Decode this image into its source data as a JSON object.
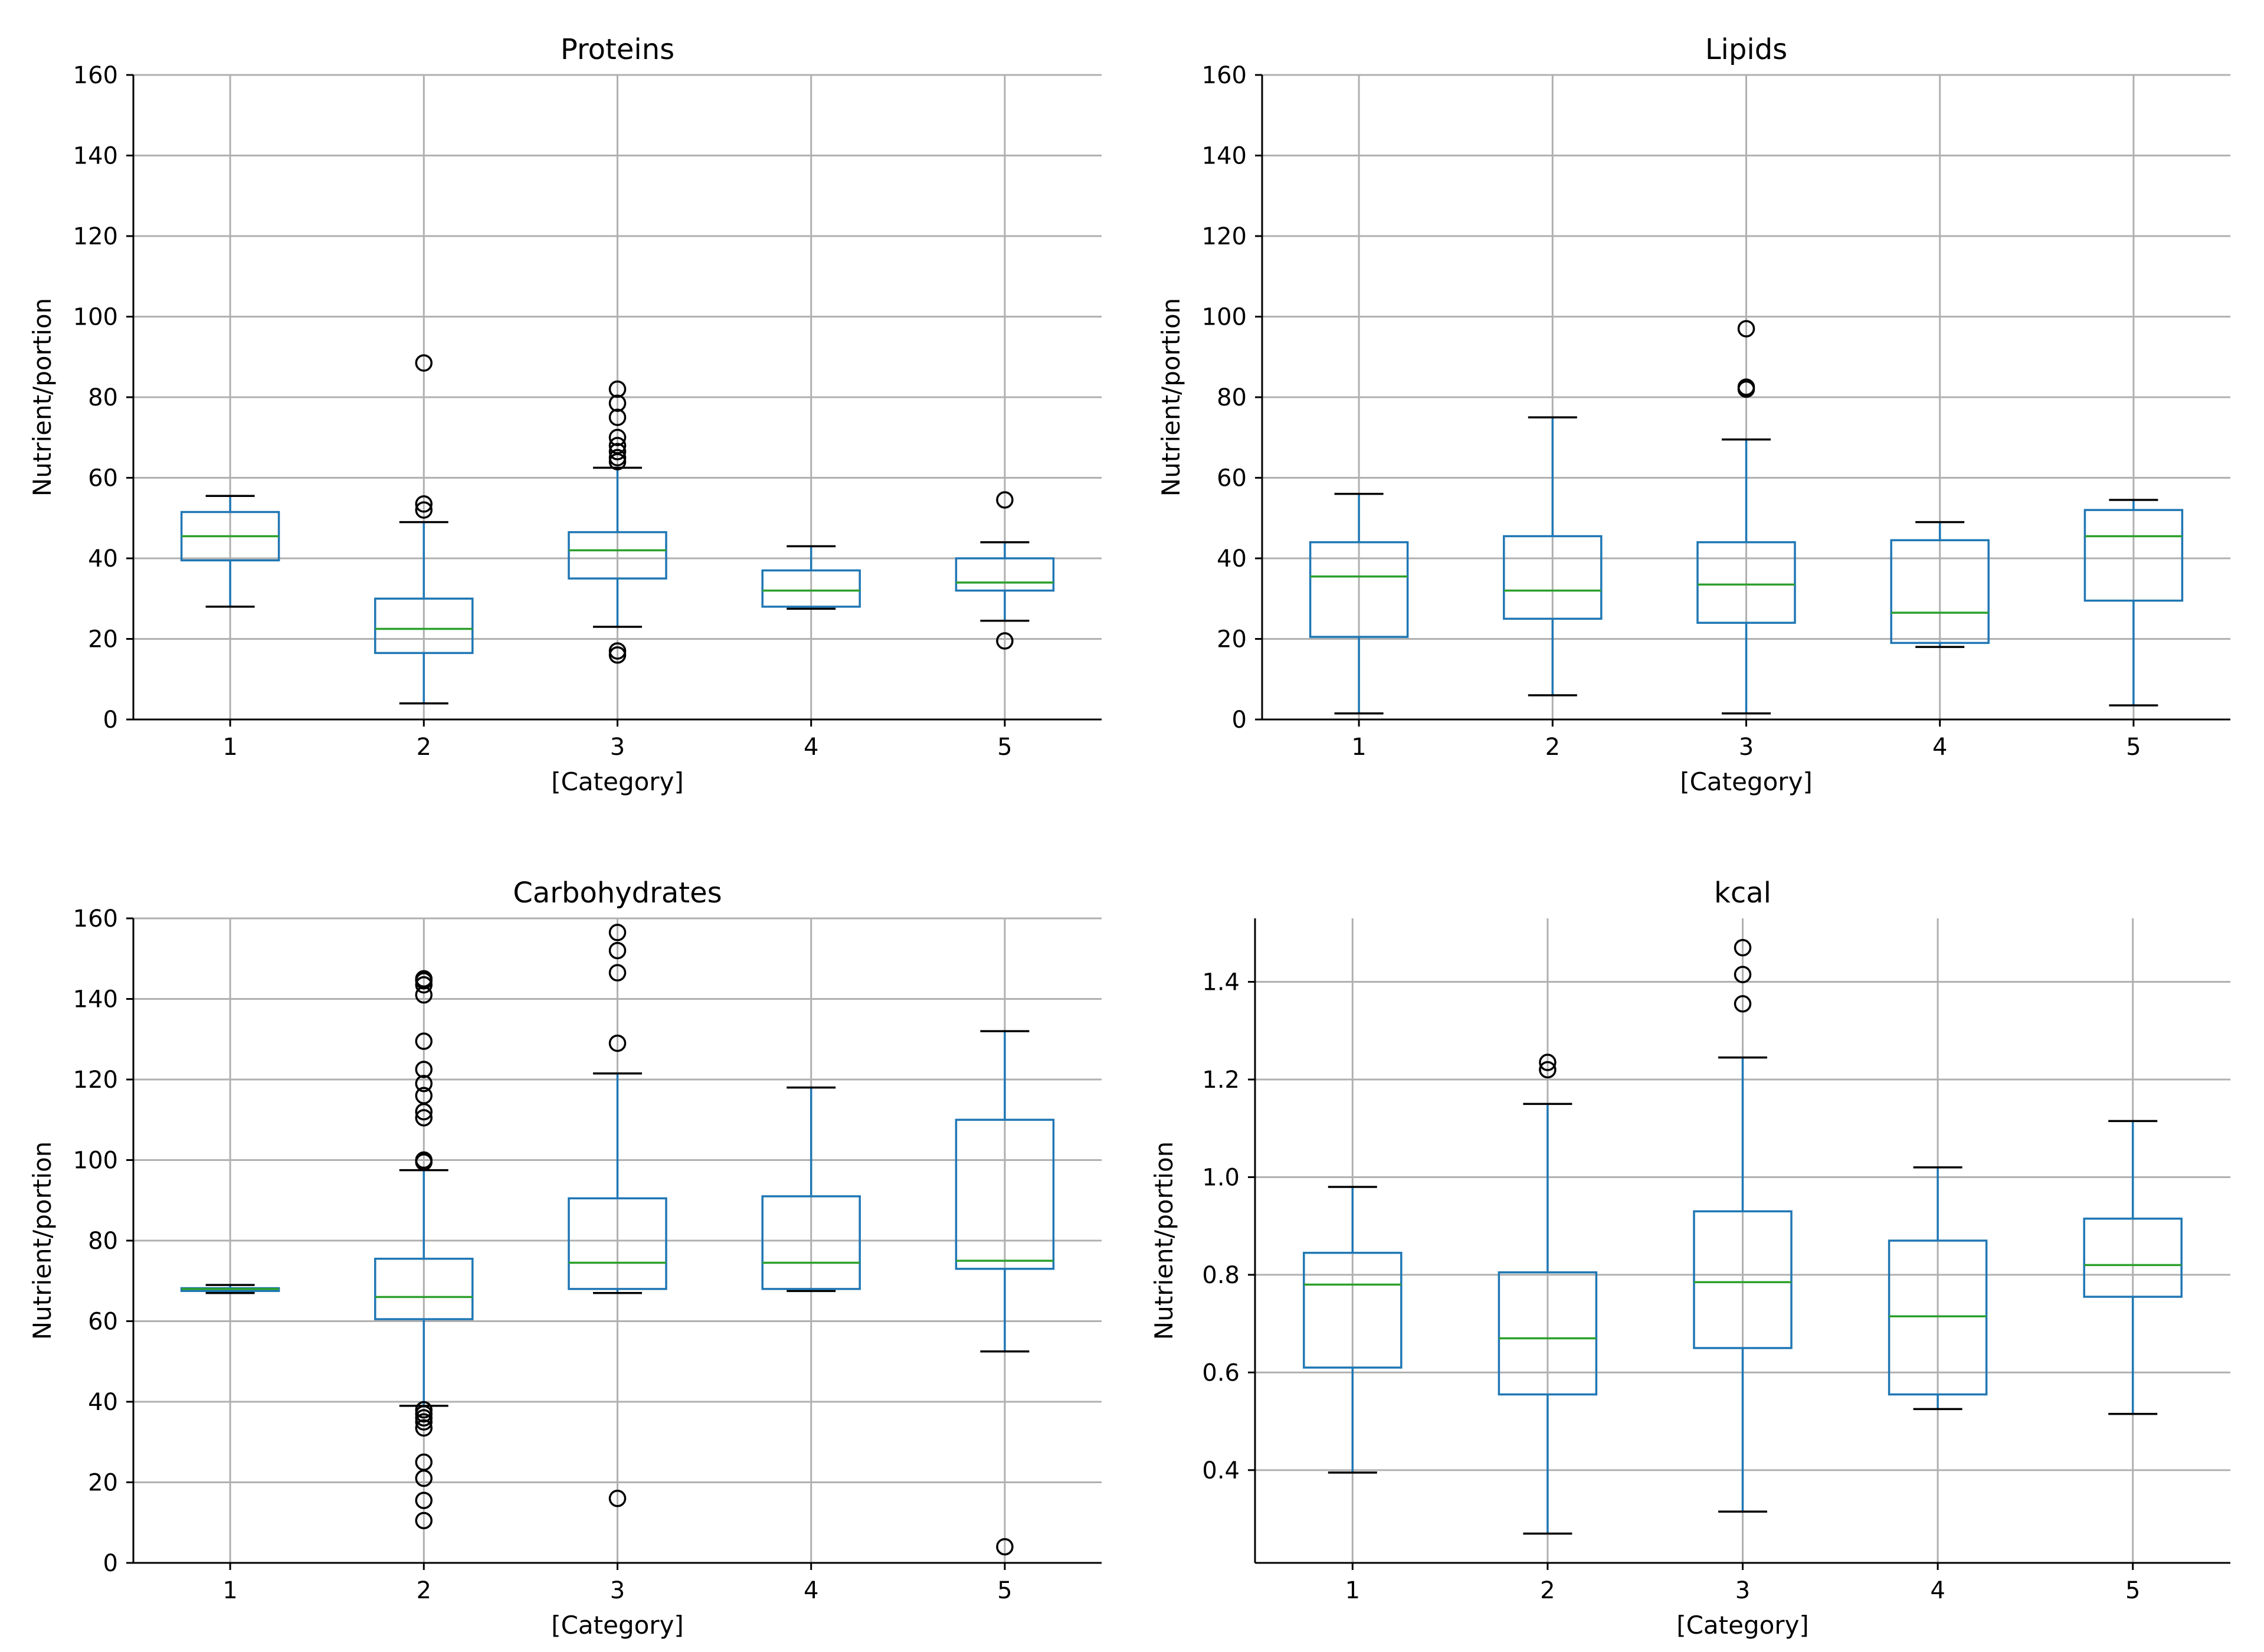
{
  "chart_data": [
    {
      "type": "box",
      "title": "Proteins",
      "xlabel": "[Category]",
      "ylabel": "Nutrient/portion",
      "ylim": [
        0,
        160
      ],
      "yticks": [
        0,
        20,
        40,
        60,
        80,
        100,
        120,
        140,
        160
      ],
      "ytick_labels": [
        "0",
        "20",
        "40",
        "60",
        "80",
        "100",
        "120",
        "140",
        "160"
      ],
      "categories": [
        "1",
        "2",
        "3",
        "4",
        "5"
      ],
      "grid": true,
      "boxes": [
        {
          "category": "1",
          "whisker_low": 28,
          "q1": 39.5,
          "median": 45.5,
          "q3": 51.5,
          "whisker_high": 55.5,
          "outliers": []
        },
        {
          "category": "2",
          "whisker_low": 4,
          "q1": 16.5,
          "median": 22.5,
          "q3": 30,
          "whisker_high": 49,
          "outliers": [
            52,
            53.5,
            88.5
          ]
        },
        {
          "category": "3",
          "whisker_low": 23,
          "q1": 35,
          "median": 42,
          "q3": 46.5,
          "whisker_high": 62.5,
          "outliers": [
            16,
            17,
            64,
            65,
            66.5,
            68,
            70,
            75,
            78.5,
            82
          ]
        },
        {
          "category": "4",
          "whisker_low": 27.5,
          "q1": 28,
          "median": 32,
          "q3": 37,
          "whisker_high": 43,
          "outliers": []
        },
        {
          "category": "5",
          "whisker_low": 24.5,
          "q1": 32,
          "median": 34,
          "q3": 40,
          "whisker_high": 44,
          "outliers": [
            19.5,
            54.5
          ]
        }
      ]
    },
    {
      "type": "box",
      "title": "Lipids",
      "xlabel": "[Category]",
      "ylabel": "Nutrient/portion",
      "ylim": [
        0,
        160
      ],
      "yticks": [
        0,
        20,
        40,
        60,
        80,
        100,
        120,
        140,
        160
      ],
      "ytick_labels": [
        "0",
        "20",
        "40",
        "60",
        "80",
        "100",
        "120",
        "140",
        "160"
      ],
      "categories": [
        "1",
        "2",
        "3",
        "4",
        "5"
      ],
      "grid": true,
      "boxes": [
        {
          "category": "1",
          "whisker_low": 1.5,
          "q1": 20.5,
          "median": 35.5,
          "q3": 44,
          "whisker_high": 56,
          "outliers": []
        },
        {
          "category": "2",
          "whisker_low": 6,
          "q1": 25,
          "median": 32,
          "q3": 45.5,
          "whisker_high": 75,
          "outliers": []
        },
        {
          "category": "3",
          "whisker_low": 1.5,
          "q1": 24,
          "median": 33.5,
          "q3": 44,
          "whisker_high": 69.5,
          "outliers": [
            82,
            82.5,
            97
          ]
        },
        {
          "category": "4",
          "whisker_low": 18,
          "q1": 19,
          "median": 26.5,
          "q3": 44.5,
          "whisker_high": 49,
          "outliers": []
        },
        {
          "category": "5",
          "whisker_low": 3.5,
          "q1": 29.5,
          "median": 45.5,
          "q3": 52,
          "whisker_high": 54.5,
          "outliers": []
        }
      ]
    },
    {
      "type": "box",
      "title": "Carbohydrates",
      "xlabel": "[Category]",
      "ylabel": "Nutrient/portion",
      "ylim": [
        0,
        160
      ],
      "yticks": [
        0,
        20,
        40,
        60,
        80,
        100,
        120,
        140,
        160
      ],
      "ytick_labels": [
        "0",
        "20",
        "40",
        "60",
        "80",
        "100",
        "120",
        "140",
        "160"
      ],
      "categories": [
        "1",
        "2",
        "3",
        "4",
        "5"
      ],
      "grid": true,
      "boxes": [
        {
          "category": "1",
          "whisker_low": 67,
          "q1": 67.5,
          "median": 68,
          "q3": 68.2,
          "whisker_high": 69,
          "outliers": []
        },
        {
          "category": "2",
          "whisker_low": 39,
          "q1": 60.5,
          "median": 66,
          "q3": 75.5,
          "whisker_high": 97.5,
          "outliers": [
            10.5,
            15.5,
            21,
            25,
            33.5,
            35,
            36,
            37,
            38,
            99.5,
            100,
            110.5,
            112,
            116,
            119,
            122.5,
            129.5,
            141,
            143.5,
            144.5,
            145
          ]
        },
        {
          "category": "3",
          "whisker_low": 67,
          "q1": 68,
          "median": 74.5,
          "q3": 90.5,
          "whisker_high": 121.5,
          "outliers": [
            16,
            129,
            146.5,
            152,
            156.5
          ]
        },
        {
          "category": "4",
          "whisker_low": 67.5,
          "q1": 68,
          "median": 74.5,
          "q3": 91,
          "whisker_high": 118,
          "outliers": []
        },
        {
          "category": "5",
          "whisker_low": 52.5,
          "q1": 73,
          "median": 75,
          "q3": 110,
          "whisker_high": 132,
          "outliers": [
            4
          ]
        }
      ]
    },
    {
      "type": "box",
      "title": "kcal",
      "xlabel": "[Category]",
      "ylabel": "Nutrient/portion",
      "ylim": [
        0.21,
        1.53
      ],
      "yticks": [
        0.4,
        0.6,
        0.8,
        1.0,
        1.2,
        1.4
      ],
      "ytick_labels": [
        "0.4",
        "0.6",
        "0.8",
        "1.0",
        "1.2",
        "1.4"
      ],
      "categories": [
        "1",
        "2",
        "3",
        "4",
        "5"
      ],
      "grid": true,
      "boxes": [
        {
          "category": "1",
          "whisker_low": 0.395,
          "q1": 0.61,
          "median": 0.78,
          "q3": 0.845,
          "whisker_high": 0.98,
          "outliers": []
        },
        {
          "category": "2",
          "whisker_low": 0.27,
          "q1": 0.555,
          "median": 0.67,
          "q3": 0.805,
          "whisker_high": 1.15,
          "outliers": [
            1.22,
            1.235
          ]
        },
        {
          "category": "3",
          "whisker_low": 0.315,
          "q1": 0.65,
          "median": 0.785,
          "q3": 0.93,
          "whisker_high": 1.245,
          "outliers": [
            1.355,
            1.415,
            1.47
          ]
        },
        {
          "category": "4",
          "whisker_low": 0.525,
          "q1": 0.555,
          "median": 0.715,
          "q3": 0.87,
          "whisker_high": 1.02,
          "outliers": []
        },
        {
          "category": "5",
          "whisker_low": 0.515,
          "q1": 0.755,
          "median": 0.82,
          "q3": 0.915,
          "whisker_high": 1.115,
          "outliers": []
        }
      ]
    }
  ],
  "colors": {
    "box": "#1f77b4",
    "median": "#2ca02c",
    "whisker": "#1f77b4",
    "cap": "#000000",
    "flier": "#000000",
    "grid": "#b0b0b0",
    "axis": "#000000"
  }
}
